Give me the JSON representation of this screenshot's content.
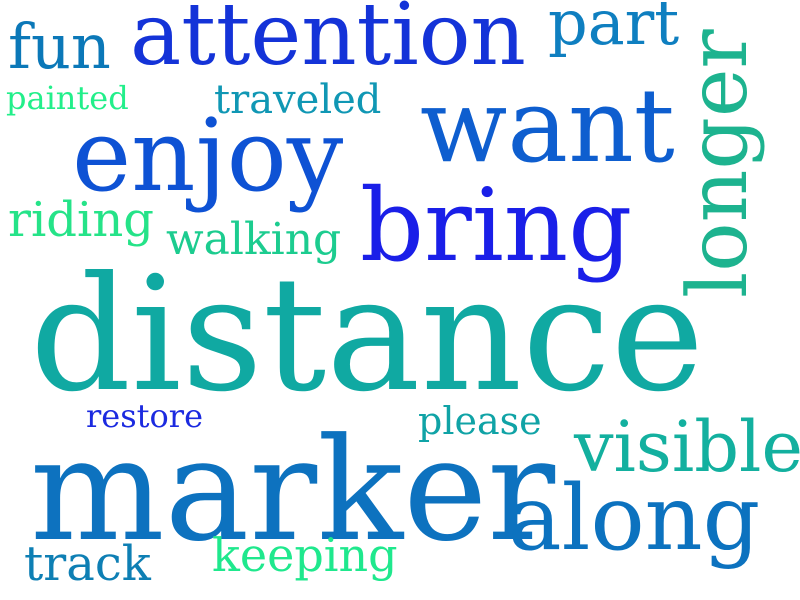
{
  "words": {
    "attention": {
      "text": "attention",
      "color": "#1433d8"
    },
    "part": {
      "text": "part",
      "color": "#0f7fc0"
    },
    "fun": {
      "text": "fun",
      "color": "#0b78b8"
    },
    "longer": {
      "text": "longer",
      "color": "#1db38f"
    },
    "painted": {
      "text": "painted",
      "color": "#22ef8a"
    },
    "traveled": {
      "text": "traveled",
      "color": "#1097b4"
    },
    "want": {
      "text": "want",
      "color": "#0e5ecf"
    },
    "enjoy": {
      "text": "enjoy",
      "color": "#0e52d4"
    },
    "riding": {
      "text": "riding",
      "color": "#25e388"
    },
    "walking": {
      "text": "walking",
      "color": "#1ccc8f"
    },
    "bring": {
      "text": "bring",
      "color": "#1a1fe8"
    },
    "distance": {
      "text": "distance",
      "color": "#10a9a2"
    },
    "restore": {
      "text": "restore",
      "color": "#1b2ae0"
    },
    "please": {
      "text": "please",
      "color": "#10a3a6"
    },
    "visible": {
      "text": "visible",
      "color": "#13b09f"
    },
    "marker": {
      "text": "marker",
      "color": "#0d72bf"
    },
    "along": {
      "text": "along",
      "color": "#0c72bf"
    },
    "track": {
      "text": "track",
      "color": "#0e7fb4"
    },
    "keeping": {
      "text": "keeping",
      "color": "#1fe88d"
    }
  }
}
